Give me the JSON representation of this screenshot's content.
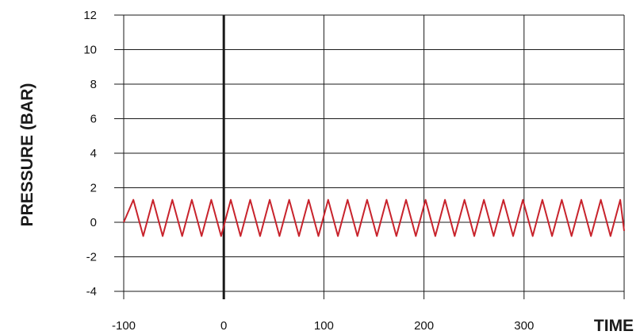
{
  "chart_data": {
    "type": "line",
    "title": "",
    "xlabel": "TIME",
    "ylabel": "PRESSURE (BAR)",
    "xlim": [
      -100,
      400
    ],
    "ylim": [
      -4,
      12
    ],
    "x_ticks": [
      -100,
      0,
      100,
      200,
      300
    ],
    "y_ticks": [
      -4,
      -2,
      0,
      2,
      4,
      6,
      8,
      10,
      12
    ],
    "grid": true,
    "legend": "none",
    "zero_line_x": 0,
    "series": [
      {
        "color": "#c8232c",
        "x": [
          -100,
          -90.3,
          -80.5,
          -70.8,
          -61.1,
          -51.4,
          -41.6,
          -31.9,
          -22.2,
          -12.5,
          -2.7,
          7.0,
          16.7,
          26.4,
          36.2,
          45.9,
          55.6,
          65.4,
          75.1,
          84.8,
          94.5,
          104.3,
          114.0,
          123.7,
          133.5,
          143.2,
          152.9,
          162.6,
          172.4,
          182.1,
          191.8,
          201.6,
          211.3,
          221.0,
          230.7,
          240.5,
          250.2,
          259.9,
          269.6,
          279.4,
          289.1,
          298.8,
          308.6,
          318.3,
          328.0,
          337.7,
          347.5,
          357.2,
          366.9,
          376.7,
          386.4,
          396.1,
          400
        ],
        "values": [
          0,
          1.3,
          -0.8,
          1.3,
          -0.8,
          1.3,
          -0.8,
          1.3,
          -0.8,
          1.3,
          -0.8,
          1.3,
          -0.8,
          1.3,
          -0.8,
          1.3,
          -0.8,
          1.3,
          -0.8,
          1.3,
          -0.8,
          1.3,
          -0.8,
          1.3,
          -0.8,
          1.3,
          -0.8,
          1.3,
          -0.8,
          1.3,
          -0.8,
          1.3,
          -0.8,
          1.3,
          -0.8,
          1.3,
          -0.8,
          1.3,
          -0.8,
          1.3,
          -0.8,
          1.3,
          -0.8,
          1.3,
          -0.8,
          1.3,
          -0.8,
          1.3,
          -0.8,
          1.3,
          -0.8,
          1.3,
          -0.5
        ]
      }
    ]
  }
}
